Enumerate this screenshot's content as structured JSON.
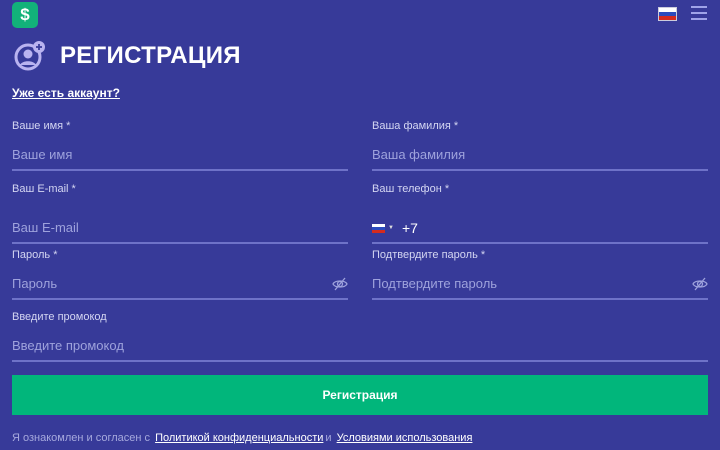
{
  "header": {
    "logo_letter": "S",
    "language": "ru",
    "menu_icon": "hamburger-icon"
  },
  "title": "РЕГИСТРАЦИЯ",
  "login_link": "Уже есть аккаунт?",
  "fields": {
    "first_name": {
      "label": "Ваше имя *",
      "placeholder": "Ваше имя"
    },
    "last_name": {
      "label": "Ваша фамилия *",
      "placeholder": "Ваша фамилия"
    },
    "email": {
      "label": "Ваш E-mail *",
      "placeholder": "Ваш E-mail"
    },
    "phone": {
      "label": "Ваш телефон *",
      "value": "+7"
    },
    "password": {
      "label": "Пароль *",
      "placeholder": "Пароль"
    },
    "confirm": {
      "label": "Подтвердите пароль *",
      "placeholder": "Подтвердите пароль"
    },
    "promo": {
      "label": "Введите промокод",
      "placeholder": "Введите промокод"
    }
  },
  "submit": "Регистрация",
  "terms": {
    "prefix": "Я ознакомлен и согласен с",
    "privacy": "Политикой конфиденциальности",
    "and": "и",
    "usage": "Условиями использования"
  },
  "colors": {
    "background": "#373a99",
    "accent": "#01b67b"
  }
}
